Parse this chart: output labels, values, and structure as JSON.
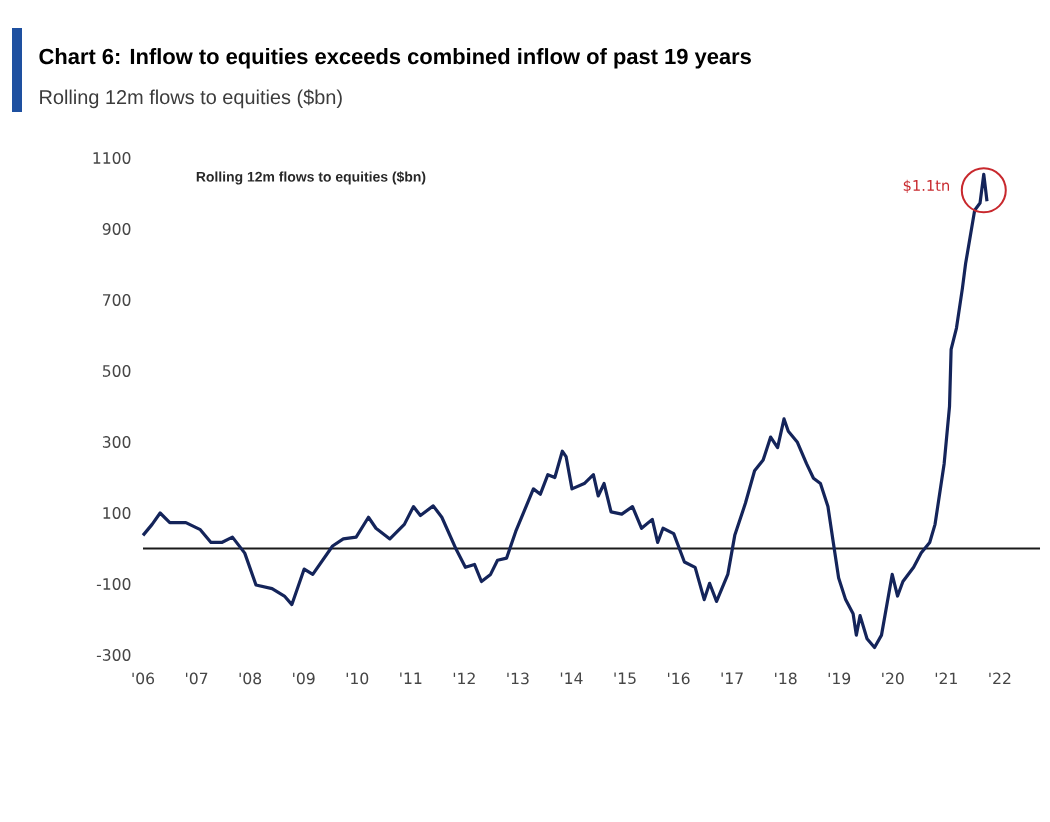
{
  "chart_data": {
    "type": "line",
    "title": "Chart 6: Inflow to equities exceeds combined inflow of past 19 years",
    "subtitle": "Rolling 12m flows to equities ($bn)",
    "annotations": [
      "Rolling 12m flows to equities ($bn)",
      {
        "text": "$1.1tn",
        "x": 2021.7,
        "y": 1054
      }
    ],
    "x": [
      2006.0,
      2006.17,
      2006.32,
      2006.5,
      2006.8,
      2007.07,
      2007.27,
      2007.47,
      2007.67,
      2007.9,
      2008.11,
      2008.41,
      2008.64,
      2008.78,
      2009.01,
      2009.17,
      2009.54,
      2009.74,
      2009.98,
      2010.21,
      2010.35,
      2010.61,
      2010.88,
      2011.05,
      2011.18,
      2011.42,
      2011.58,
      2011.85,
      2012.02,
      2012.19,
      2012.32,
      2012.49,
      2012.62,
      2012.79,
      2012.96,
      2013.29,
      2013.42,
      2013.56,
      2013.69,
      2013.83,
      2013.9,
      2014.01,
      2014.24,
      2014.41,
      2014.5,
      2014.61,
      2014.74,
      2014.94,
      2015.14,
      2015.31,
      2015.51,
      2015.61,
      2015.71,
      2015.91,
      2016.11,
      2016.31,
      2016.48,
      2016.58,
      2016.71,
      2016.92,
      2017.05,
      2017.25,
      2017.42,
      2017.58,
      2017.72,
      2017.85,
      2017.97,
      2018.05,
      2018.22,
      2018.39,
      2018.52,
      2018.65,
      2018.79,
      2018.89,
      2018.99,
      2019.12,
      2019.26,
      2019.32,
      2019.39,
      2019.52,
      2019.66,
      2019.79,
      2019.99,
      2020.09,
      2020.19,
      2020.39,
      2020.53,
      2020.69,
      2020.79,
      2020.96,
      2021.06,
      2021.09,
      2021.19,
      2021.3,
      2021.36,
      2021.53,
      2021.63,
      2021.7,
      2021.76
    ],
    "series": [
      {
        "color": "#14245a",
        "values": [
          37,
          68,
          100,
          73,
          73,
          53,
          17,
          17,
          32,
          -13,
          -103,
          -113,
          -134,
          -158,
          -58,
          -73,
          7,
          27,
          32,
          88,
          57,
          27,
          68,
          118,
          93,
          120,
          88,
          -3,
          -53,
          -45,
          -93,
          -73,
          -33,
          -27,
          48,
          168,
          153,
          208,
          200,
          274,
          259,
          168,
          183,
          208,
          148,
          183,
          103,
          97,
          118,
          57,
          82,
          17,
          57,
          42,
          -38,
          -53,
          -144,
          -98,
          -149,
          -73,
          37,
          128,
          219,
          249,
          314,
          284,
          365,
          330,
          299,
          239,
          198,
          183,
          118,
          17,
          -83,
          -144,
          -184,
          -244,
          -189,
          -254,
          -279,
          -244,
          -73,
          -134,
          -93,
          -53,
          -13,
          17,
          68,
          239,
          400,
          561,
          621,
          732,
          802,
          953,
          973,
          1054,
          978
        ]
      }
    ],
    "xlim": [
      2006,
      2022.75
    ],
    "ylim": [
      -300,
      1100
    ],
    "xticks": [
      {
        "value": 2006,
        "label": "'06"
      },
      {
        "value": 2007,
        "label": "'07"
      },
      {
        "value": 2008,
        "label": "'08"
      },
      {
        "value": 2009,
        "label": "'09"
      },
      {
        "value": 2010,
        "label": "'10"
      },
      {
        "value": 2011,
        "label": "'11"
      },
      {
        "value": 2012,
        "label": "'12"
      },
      {
        "value": 2013,
        "label": "'13"
      },
      {
        "value": 2014,
        "label": "'14"
      },
      {
        "value": 2015,
        "label": "'15"
      },
      {
        "value": 2016,
        "label": "'16"
      },
      {
        "value": 2017,
        "label": "'17"
      },
      {
        "value": 2018,
        "label": "'18"
      },
      {
        "value": 2019,
        "label": "'19"
      },
      {
        "value": 2020,
        "label": "'20"
      },
      {
        "value": 2021,
        "label": "'21"
      },
      {
        "value": 2022,
        "label": "'22"
      }
    ],
    "yticks": [
      -300,
      -100,
      100,
      300,
      500,
      700,
      900,
      1100
    ],
    "ref_lines": [
      {
        "axis": "y",
        "value": 0,
        "color": "#1a1a1a"
      }
    ]
  }
}
